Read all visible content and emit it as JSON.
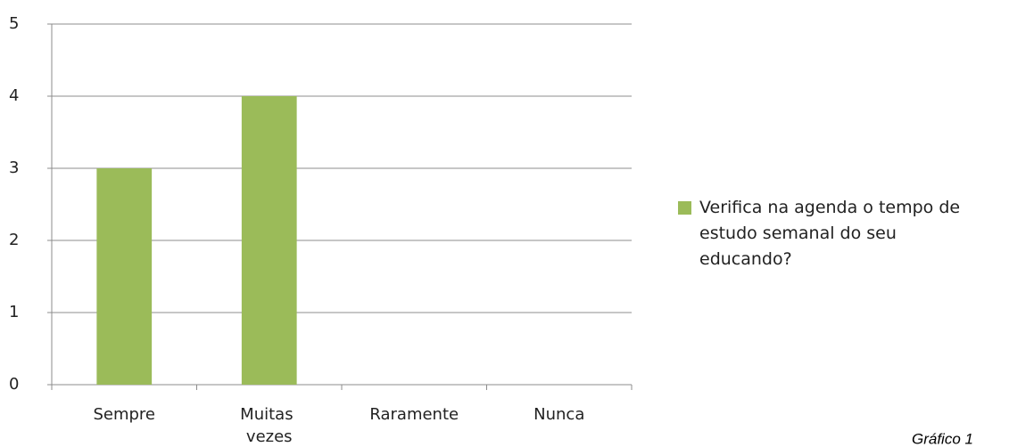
{
  "chart_data": {
    "type": "bar",
    "categories": [
      "Sempre",
      "Muitas vezes",
      "Raramente",
      "Nunca"
    ],
    "series": [
      {
        "name": "Verifica na agenda o tempo de estudo semanal do seu educando?",
        "color": "#9bbb59",
        "values": [
          3,
          4,
          0,
          0
        ]
      }
    ],
    "ylim": [
      0,
      5
    ],
    "yticks": [
      0,
      1,
      2,
      3,
      4,
      5
    ],
    "grid": true,
    "legend": "right",
    "annotation": "Gráfico 1"
  }
}
